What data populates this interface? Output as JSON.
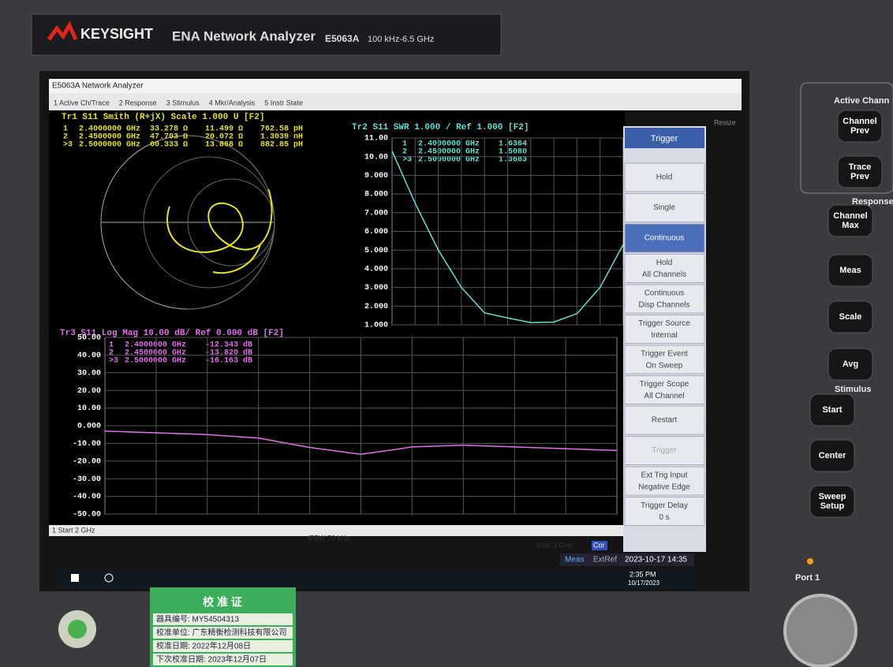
{
  "brand": {
    "logo": "KEYSIGHT",
    "product": "ENA Network Analyzer",
    "model": "E5063A",
    "range": "100 kHz-6.5 GHz"
  },
  "window": {
    "title": "E5063A Network Analyzer",
    "menu": [
      "1 Active Ch/Trace",
      "2 Response",
      "3 Stimulus",
      "4 Mkr/Analysis",
      "5 Instr State"
    ],
    "resize": "Resize"
  },
  "smith": {
    "header": "Tr1 S11 Smith (R+jX) Scale 1.000 U [F2]",
    "markers": [
      [
        "1",
        "2.4000000 GHz",
        "33.278 Ω",
        "11.499 Ω",
        "762.58 pH"
      ],
      [
        "2",
        "2.4500000 GHz",
        "47.703 Ω",
        "20.072 Ω",
        "1.3039 nH"
      ],
      [
        ">3",
        "2.5000000 GHz",
        "60.333 Ω",
        "13.868 Ω",
        "882.85 pH"
      ]
    ]
  },
  "swr": {
    "header": "Tr2 S11 SWR 1.000 / Ref 1.000 [F2]",
    "yticks": [
      {
        "value": 11,
        "label": "11.00"
      },
      {
        "value": 10,
        "label": "10.00"
      },
      {
        "value": 9,
        "label": "9.000"
      },
      {
        "value": 8,
        "label": "8.000"
      },
      {
        "value": 7,
        "label": "7.000"
      },
      {
        "value": 6,
        "label": "6.000"
      },
      {
        "value": 5,
        "label": "5.000"
      },
      {
        "value": 4,
        "label": "4.000"
      },
      {
        "value": 3,
        "label": "3.000"
      },
      {
        "value": 2,
        "label": "2.000"
      },
      {
        "value": 1,
        "label": "1.000"
      }
    ],
    "ylim": [
      1,
      11
    ],
    "xlim": [
      2,
      3
    ],
    "markers": [
      [
        "1",
        "2.4000000 GHz",
        "1.6364"
      ],
      [
        "2",
        "2.4500000 GHz",
        "1.5080"
      ],
      [
        ">3",
        "2.5000000 GHz",
        "1.3683"
      ]
    ],
    "x": [
      2.0,
      2.1,
      2.2,
      2.3,
      2.4,
      2.5,
      2.6,
      2.7,
      2.8,
      2.9,
      3.0
    ],
    "values": [
      10.3,
      7.5,
      5.0,
      3.0,
      1.64,
      1.37,
      1.12,
      1.15,
      1.6,
      3.0,
      5.3
    ]
  },
  "logmag": {
    "header": "Tr3 S11 Log Mag 10.00 dB/ Ref 0.000 dB [F2]",
    "yticks": [
      {
        "value": 50,
        "label": "50.00"
      },
      {
        "value": 40,
        "label": "40.00"
      },
      {
        "value": 30,
        "label": "30.00"
      },
      {
        "value": 20,
        "label": "20.00"
      },
      {
        "value": 10,
        "label": "10.00"
      },
      {
        "value": 0,
        "label": "0.000"
      },
      {
        "value": -10,
        "label": "-10.00"
      },
      {
        "value": -20,
        "label": "-20.00"
      },
      {
        "value": -30,
        "label": "-30.00"
      },
      {
        "value": -40,
        "label": "-40.00"
      },
      {
        "value": -50,
        "label": "-50.00"
      }
    ],
    "ylim": [
      -50,
      50
    ],
    "xlim": [
      2,
      3
    ],
    "markers": [
      [
        "1",
        "2.4000000 GHz",
        "-12.343 dB"
      ],
      [
        "2",
        "2.4500000 GHz",
        "-13.820 dB"
      ],
      [
        ">3",
        "2.5000000 GHz",
        "-16.163 dB"
      ]
    ],
    "x": [
      2.0,
      2.1,
      2.2,
      2.3,
      2.4,
      2.5,
      2.6,
      2.7,
      2.8,
      2.9,
      3.0
    ],
    "values": [
      -3,
      -4,
      -5,
      -7,
      -12.3,
      -16.2,
      -12,
      -11,
      -12,
      -13,
      -14
    ]
  },
  "status": {
    "start": "1 Start 2 GHz",
    "ifbw": "IFBW 70 kHz",
    "stop": "Stop 3 GHz",
    "cor": "Cor",
    "meas": "Meas",
    "extref": "ExtRef",
    "datetime": "2023-10-17 14:35"
  },
  "softkeys": {
    "title": "Trigger",
    "keys": [
      [
        "Hold"
      ],
      [
        "Single"
      ],
      [
        "Continuous"
      ],
      [
        "Hold",
        "All Channels"
      ],
      [
        "Continuous",
        "Disp Channels"
      ],
      [
        "Trigger Source",
        "Internal"
      ],
      [
        "Trigger Event",
        "On Sweep"
      ],
      [
        "Trigger Scope",
        "All Channel"
      ],
      [
        "Restart"
      ],
      [
        "Trigger"
      ],
      [
        "Ext Trig Input",
        "Negative Edge"
      ],
      [
        "Trigger Delay",
        "0 s"
      ]
    ]
  },
  "taskbar": {
    "time": "2:35 PM",
    "date": "10/17/2023"
  },
  "panel": {
    "active": "Active Chann",
    "response": "Response",
    "stimulus": "Stimulus",
    "port": "Port 1",
    "buttons": [
      [
        "Channel",
        "Prev"
      ],
      [
        "Trace",
        "Prev"
      ],
      [
        "Channel",
        "Max"
      ],
      [
        "Meas"
      ],
      [
        "Scale"
      ],
      [
        "Avg"
      ],
      [
        "Start"
      ],
      [
        "Center"
      ],
      [
        "Sweep",
        "Setup"
      ]
    ]
  },
  "sticker": {
    "title": "校 准 证",
    "rows": [
      "器具编号: MY54504313",
      "校准单位: 广东精衡检测科技有限公司",
      "校准日期: 2022年12月08日",
      "下次校准日期: 2023年12月07日"
    ]
  }
}
